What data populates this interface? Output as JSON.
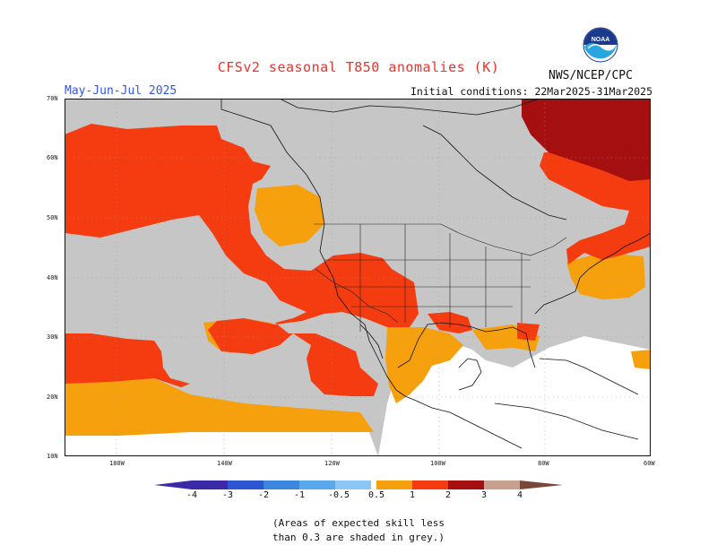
{
  "header": {
    "title": "CFSv2 seasonal T850 anomalies (K)",
    "season": "May-Jun-Jul 2025",
    "initial_conditions": "Initial conditions: 22Mar2025-31Mar2025",
    "agency": "NWS/NCEP/CPC",
    "logo_text": "NOAA"
  },
  "map": {
    "lat_ticks": [
      "70N",
      "60N",
      "50N",
      "40N",
      "30N",
      "20N",
      "10N"
    ],
    "lon_ticks": [
      "180W",
      "140W",
      "120W",
      "100W",
      "80W",
      "60W"
    ],
    "colors": {
      "grey": "#c6c6c6",
      "orange": "#f5a00c",
      "redorange": "#f53c10",
      "darkred": "#a50f0f",
      "ocean_white": "#ffffff"
    }
  },
  "colorbar": {
    "labels": [
      "-4",
      "-3",
      "-2",
      "-1",
      "-0.5",
      "0.5",
      "1",
      "2",
      "3",
      "4"
    ],
    "colors": [
      "#3a2aa8",
      "#2e55d2",
      "#3c86e0",
      "#5aa8ec",
      "#8cc6f5",
      "#ffffff",
      "#f5a00c",
      "#f53c10",
      "#a50f0f",
      "#c8a090",
      "#7a4838"
    ]
  },
  "note": {
    "line1": "(Areas of expected skill less",
    "line2": "than 0.3 are shaded in grey.)"
  }
}
